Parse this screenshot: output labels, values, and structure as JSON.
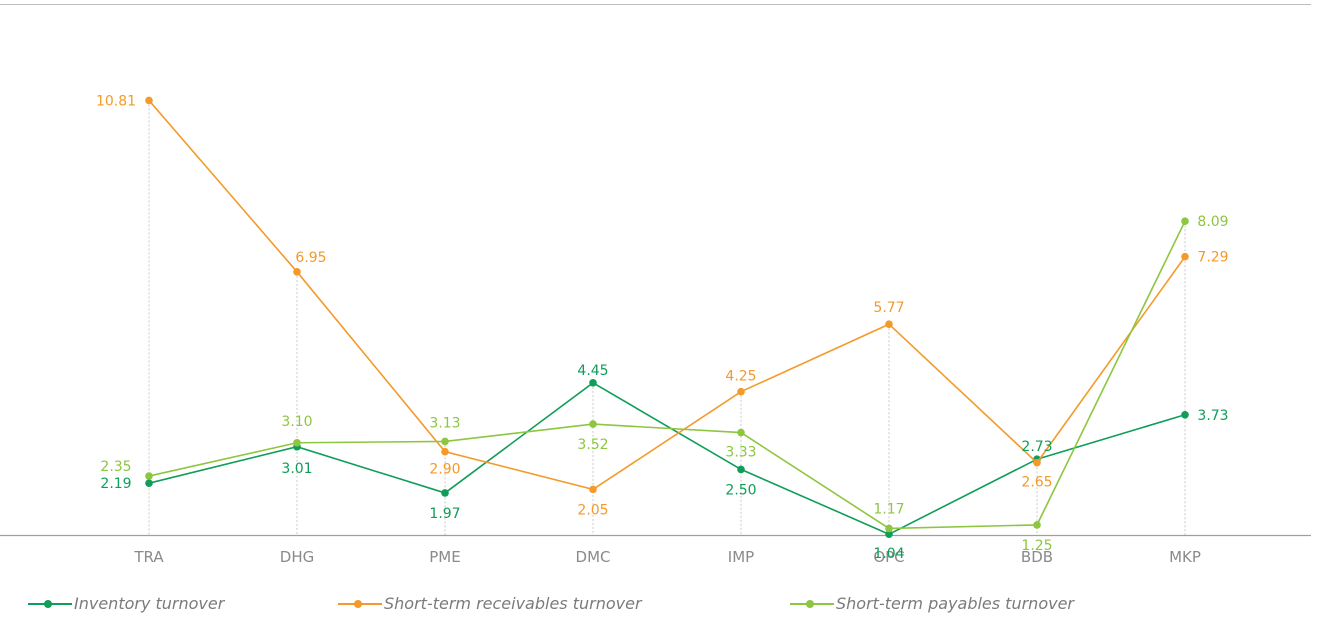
{
  "chart_data": {
    "type": "line",
    "categories": [
      "TRA",
      "DHG",
      "PME",
      "DMC",
      "IMP",
      "OPC",
      "BDB",
      "MKP"
    ],
    "series": [
      {
        "name": "Inventory turnover",
        "color": "#0f9d58",
        "values": [
          2.19,
          3.01,
          1.97,
          4.45,
          2.5,
          1.04,
          2.73,
          3.73
        ],
        "labels": [
          "2.19",
          "3.01",
          "1.97",
          "4.45",
          "2.50",
          "1.04",
          "2.73",
          "3.73"
        ]
      },
      {
        "name": "Short-term receivables turnover",
        "color": "#f39a2b",
        "values": [
          10.81,
          6.95,
          2.9,
          2.05,
          4.25,
          5.77,
          2.65,
          7.29
        ],
        "labels": [
          "10.81",
          "6.95",
          "2.90",
          "2.05",
          "4.25",
          "5.77",
          "2.65",
          "7.29"
        ]
      },
      {
        "name": "Short-term payables turnover",
        "color": "#8dc63f",
        "values": [
          2.35,
          3.1,
          3.13,
          3.52,
          3.33,
          1.17,
          1.25,
          8.09
        ],
        "labels": [
          "2.35",
          "3.10",
          "3.13",
          "3.52",
          "3.33",
          "1.17",
          "1.25",
          "8.09"
        ]
      }
    ],
    "legend_position": "bottom",
    "grid": false,
    "title": "",
    "xlabel": "",
    "ylabel": ""
  }
}
